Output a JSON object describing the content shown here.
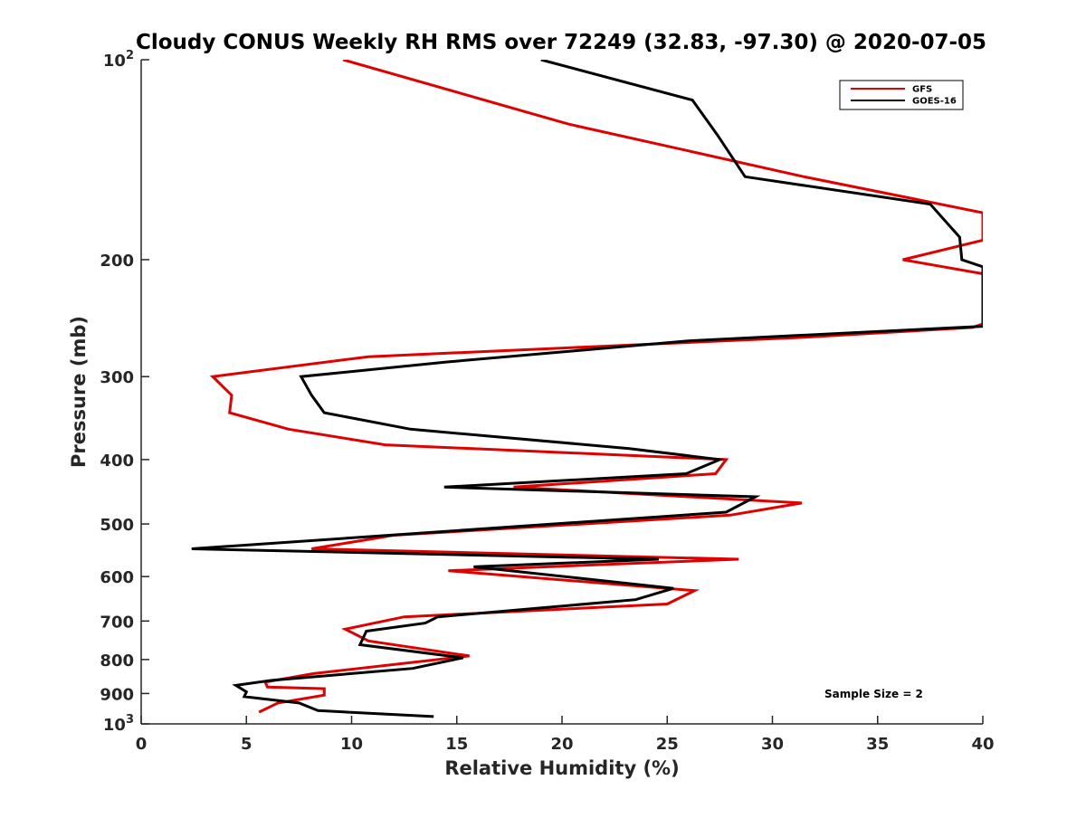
{
  "chart_data": {
    "type": "line",
    "title": "Cloudy CONUS Weekly RH RMS over 72249 (32.83, -97.30) @ 2020-07-05",
    "xlabel": "Relative Humidity (%)",
    "ylabel": "Pressure (mb)",
    "xlim": [
      0,
      40
    ],
    "ylim": [
      100,
      1000
    ],
    "yscale": "log",
    "y_reversed": true,
    "x_ticks": [
      "0",
      "5",
      "10",
      "15",
      "20",
      "25",
      "30",
      "35",
      "40"
    ],
    "x_tick_values": [
      0,
      5,
      10,
      15,
      20,
      25,
      30,
      35,
      40
    ],
    "y_ticks": [
      {
        "value": 100,
        "label": "10",
        "sup": "2"
      },
      {
        "value": 200,
        "label": "200",
        "sup": ""
      },
      {
        "value": 300,
        "label": "300",
        "sup": ""
      },
      {
        "value": 400,
        "label": "400",
        "sup": ""
      },
      {
        "value": 500,
        "label": "500",
        "sup": ""
      },
      {
        "value": 600,
        "label": "600",
        "sup": ""
      },
      {
        "value": 700,
        "label": "700",
        "sup": ""
      },
      {
        "value": 800,
        "label": "800",
        "sup": ""
      },
      {
        "value": 900,
        "label": "900",
        "sup": ""
      },
      {
        "value": 1000,
        "label": "10",
        "sup": "3"
      }
    ],
    "grid": false,
    "legend_position": "top-right",
    "annotation": "Sample Size = 2",
    "series": [
      {
        "name": "GFS",
        "color": "#e00000",
        "points": [
          [
            9.6,
            100
          ],
          [
            20.3,
            125
          ],
          [
            31.5,
            150
          ],
          [
            40.0,
            170
          ],
          [
            40.0,
            187
          ],
          [
            36.2,
            200
          ],
          [
            40.0,
            210
          ],
          [
            40.0,
            250
          ],
          [
            39.5,
            253
          ],
          [
            31.3,
            262
          ],
          [
            10.8,
            280
          ],
          [
            3.4,
            300
          ],
          [
            4.3,
            320
          ],
          [
            4.2,
            340
          ],
          [
            7.0,
            360
          ],
          [
            11.6,
            380
          ],
          [
            27.8,
            400
          ],
          [
            27.3,
            420
          ],
          [
            17.7,
            440
          ],
          [
            31.4,
            465
          ],
          [
            28.0,
            485
          ],
          [
            12.0,
            520
          ],
          [
            8.1,
            545
          ],
          [
            28.4,
            565
          ],
          [
            14.6,
            588
          ],
          [
            26.3,
            630
          ],
          [
            25.0,
            660
          ],
          [
            12.5,
            690
          ],
          [
            9.7,
            720
          ],
          [
            10.8,
            750
          ],
          [
            15.6,
            790
          ],
          [
            8.2,
            840
          ],
          [
            5.9,
            865
          ],
          [
            6.0,
            880
          ],
          [
            8.7,
            885
          ],
          [
            8.7,
            905
          ],
          [
            6.5,
            930
          ],
          [
            5.6,
            960
          ]
        ]
      },
      {
        "name": "GOES-16",
        "color": "#000000",
        "points": [
          [
            19.0,
            100
          ],
          [
            26.2,
            115
          ],
          [
            27.4,
            130
          ],
          [
            28.7,
            150
          ],
          [
            37.5,
            165
          ],
          [
            38.9,
            185
          ],
          [
            39.0,
            200
          ],
          [
            40.0,
            205
          ],
          [
            40.0,
            252
          ],
          [
            26.0,
            265
          ],
          [
            14.6,
            285
          ],
          [
            7.6,
            300
          ],
          [
            8.1,
            320
          ],
          [
            8.7,
            340
          ],
          [
            12.8,
            360
          ],
          [
            23.2,
            385
          ],
          [
            27.5,
            400
          ],
          [
            25.9,
            420
          ],
          [
            14.4,
            440
          ],
          [
            29.2,
            455
          ],
          [
            27.8,
            480
          ],
          [
            2.4,
            545
          ],
          [
            24.6,
            565
          ],
          [
            15.8,
            580
          ],
          [
            25.3,
            625
          ],
          [
            23.5,
            650
          ],
          [
            14.1,
            690
          ],
          [
            13.5,
            705
          ],
          [
            10.7,
            725
          ],
          [
            10.4,
            760
          ],
          [
            15.3,
            795
          ],
          [
            12.9,
            825
          ],
          [
            6.2,
            860
          ],
          [
            4.5,
            875
          ],
          [
            5.0,
            895
          ],
          [
            4.9,
            910
          ],
          [
            7.5,
            930
          ],
          [
            8.4,
            955
          ],
          [
            13.9,
            975
          ]
        ]
      }
    ]
  }
}
